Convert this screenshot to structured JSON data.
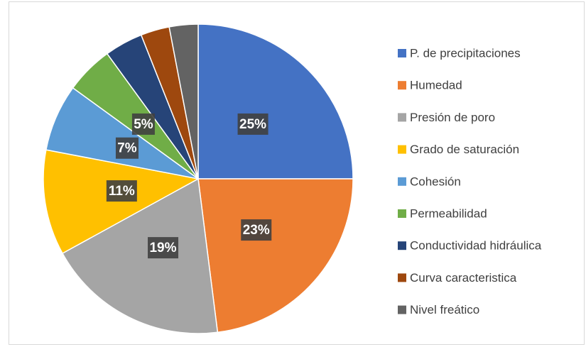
{
  "chart_data": {
    "type": "pie",
    "categories": [
      "P. de precipitaciones",
      "Humedad",
      "Presión de poro",
      "Grado de saturación",
      "Cohesión",
      "Permeabilidad",
      "Conductividad hidráulica",
      "Curva caracteristica",
      "Nivel freático"
    ],
    "values": [
      25,
      23,
      19,
      11,
      7,
      5,
      4,
      3,
      3
    ],
    "value_labels": [
      "25%",
      "23%",
      "19%",
      "11%",
      "7%",
      "5%",
      null,
      null,
      null
    ],
    "colors": [
      "#4472c4",
      "#ed7d31",
      "#a5a5a5",
      "#ffc000",
      "#5b9bd5",
      "#70ad47",
      "#264478",
      "#9e480e",
      "#636363"
    ],
    "legend": "right"
  }
}
